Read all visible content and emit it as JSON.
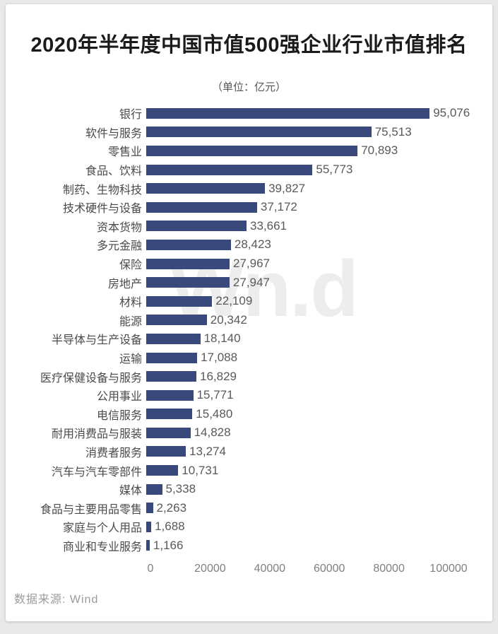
{
  "page": {
    "background": "#e9e9e9",
    "card_background": "#ffffff"
  },
  "header": {
    "title": "2020年半年度中国市值500强企业行业市值排名",
    "subtitle": "（单位：亿元）"
  },
  "watermark": {
    "text": "Wn.d"
  },
  "footer": {
    "source": "数据来源: Wind"
  },
  "chart_data": {
    "type": "bar",
    "orientation": "horizontal",
    "title": "2020年半年度中国市值500强企业行业市值排名",
    "subtitle": "（单位：亿元）",
    "unit": "亿元",
    "categories": [
      "银行",
      "软件与服务",
      "零售业",
      "食品、饮料",
      "制药、生物科技",
      "技术硬件与设备",
      "资本货物",
      "多元金融",
      "保险",
      "房地产",
      "材料",
      "能源",
      "半导体与生产设备",
      "运输",
      "医疗保健设备与服务",
      "公用事业",
      "电信服务",
      "耐用消费品与服装",
      "消费者服务",
      "汽车与汽车零部件",
      "媒体",
      "食品与主要用品零售",
      "家庭与个人用品",
      "商业和专业服务"
    ],
    "values": [
      95076,
      75513,
      70893,
      55773,
      39827,
      37172,
      33661,
      28423,
      27967,
      27947,
      22109,
      20342,
      18140,
      17088,
      16829,
      15771,
      15480,
      14828,
      13274,
      10731,
      5338,
      2263,
      1688,
      1166
    ],
    "value_labels": [
      "95,076",
      "75,513",
      "70,893",
      "55,773",
      "39,827",
      "37,172",
      "33,661",
      "28,423",
      "27,967",
      "27,947",
      "22,109",
      "20,342",
      "18,140",
      "17,088",
      "16,829",
      "15,771",
      "15,480",
      "14,828",
      "13,274",
      "10,731",
      "5,338",
      "2,263",
      "1,688",
      "1,166"
    ],
    "xlim": [
      0,
      100000
    ],
    "x_ticks": [
      "0",
      "20000",
      "40000",
      "60000",
      "80000",
      "100000"
    ],
    "x_tick_values": [
      0,
      20000,
      40000,
      60000,
      80000,
      100000
    ],
    "bar_color": "#39497C",
    "grid": false,
    "legend": false,
    "source": "数据来源: Wind"
  }
}
